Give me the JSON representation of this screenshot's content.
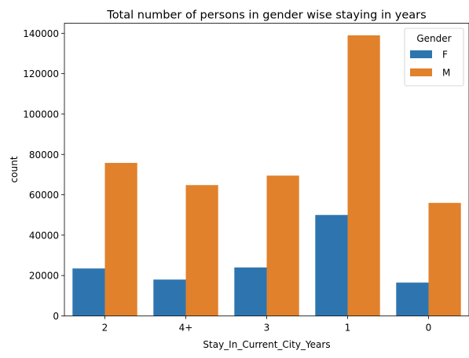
{
  "chart_data": {
    "type": "bar",
    "title": "Total number of persons in gender wise staying in years",
    "xlabel": "Stay_In_Current_City_Years",
    "ylabel": "count",
    "categories": [
      "2",
      "4+",
      "3",
      "1",
      "0"
    ],
    "series": [
      {
        "name": "F",
        "color": "#2e75b0",
        "values": [
          23500,
          18000,
          24000,
          50000,
          16500
        ]
      },
      {
        "name": "M",
        "color": "#e1812c",
        "values": [
          75800,
          64800,
          69500,
          139000,
          56000
        ]
      }
    ],
    "ylim": [
      0,
      145000
    ],
    "yticks": [
      0,
      20000,
      40000,
      60000,
      80000,
      100000,
      120000,
      140000
    ],
    "legend": {
      "title": "Gender",
      "placement": "top-right"
    },
    "grid": false
  }
}
